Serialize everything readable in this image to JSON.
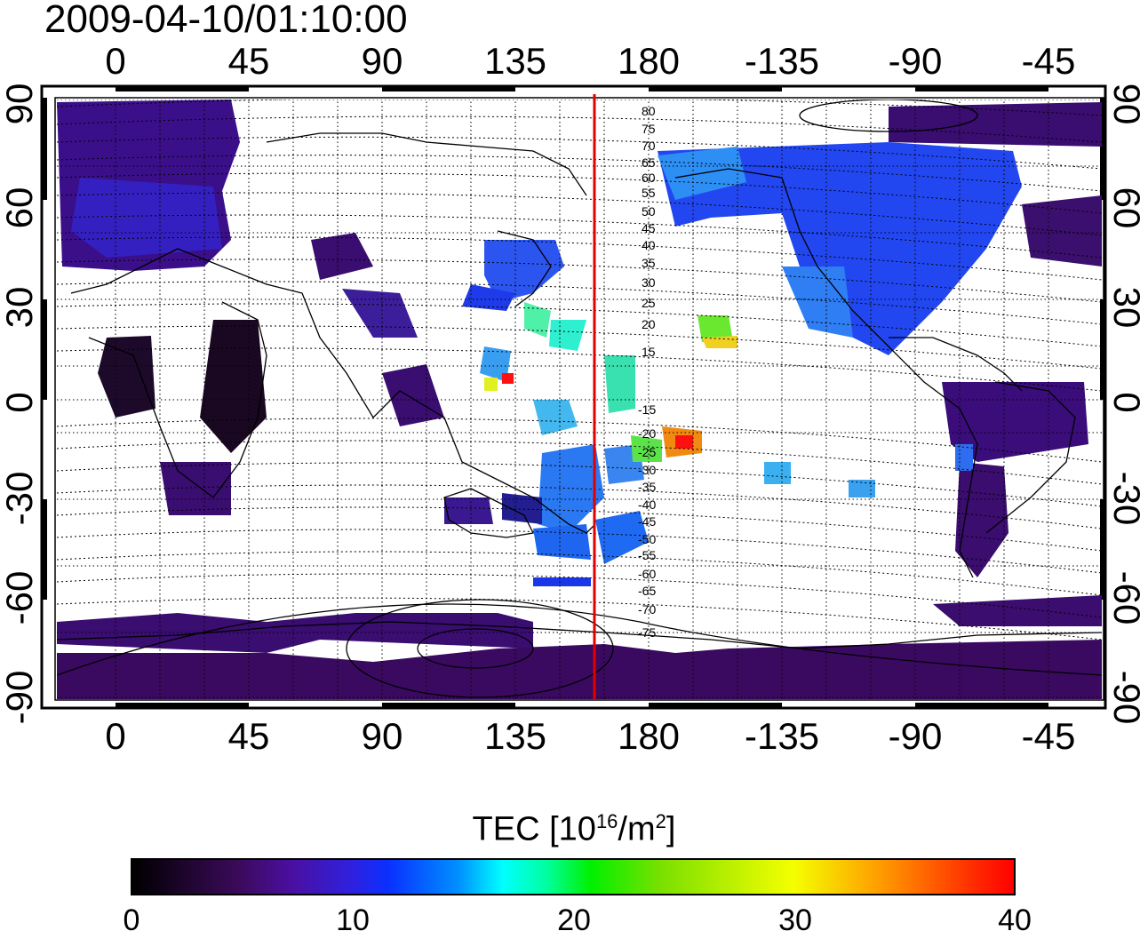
{
  "title": "2009-04-10/01:10:00",
  "axes": {
    "top_ticks": [
      "0",
      "45",
      "90",
      "135",
      "180",
      "-135",
      "-90",
      "-45"
    ],
    "bottom_ticks": [
      "0",
      "45",
      "90",
      "135",
      "180",
      "-135",
      "-90",
      "-45"
    ],
    "left_ticks": [
      "90",
      "60",
      "30",
      "0",
      "-30",
      "-60",
      "-90"
    ],
    "right_ticks": [
      "90",
      "60",
      "30",
      "0",
      "-30",
      "-60",
      "-90"
    ]
  },
  "contour_labels_north": [
    "80",
    "75",
    "70",
    "65",
    "60",
    "55",
    "50",
    "45",
    "40",
    "35",
    "30",
    "25",
    "20",
    "15"
  ],
  "contour_labels_south": [
    "-15",
    "-20",
    "-25",
    "-30",
    "-35",
    "-40",
    "-45",
    "-50",
    "-55",
    "-60",
    "-65",
    "-70",
    "-75"
  ],
  "colorbar": {
    "title_main": "TEC  [10",
    "title_exp": "16",
    "title_mid": "/m",
    "title_exp2": "2",
    "title_end": "]",
    "ticks": [
      "0",
      "10",
      "20",
      "30",
      "40"
    ],
    "min": 0,
    "max": 40
  },
  "colors": {
    "meridian_line": "#e00000",
    "grid": "#000000"
  }
}
